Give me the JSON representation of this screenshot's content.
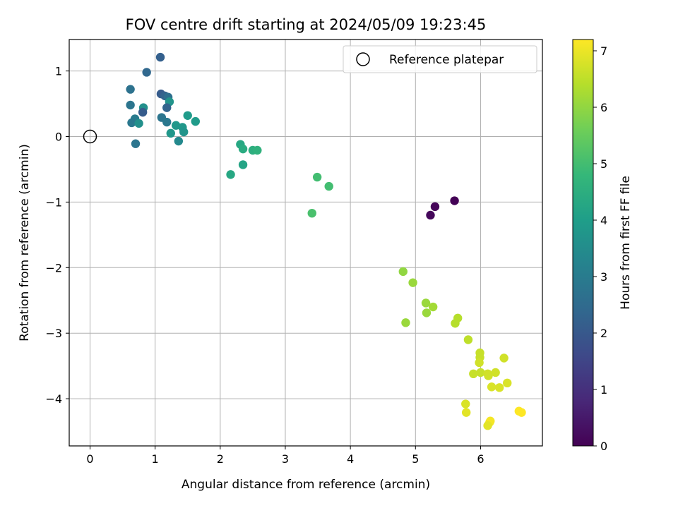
{
  "chart_data": {
    "type": "scatter",
    "title": "FOV centre drift starting at 2024/05/09 19:23:45",
    "xlabel": "Angular distance from reference (arcmin)",
    "ylabel": "Rotation from reference (arcmin)",
    "xlim": [
      -0.32,
      6.95
    ],
    "ylim": [
      -4.72,
      1.48
    ],
    "xticks": [
      0,
      1,
      2,
      3,
      4,
      5,
      6
    ],
    "yticks": [
      1,
      0,
      -1,
      -2,
      -3,
      -4
    ],
    "xtick_labels": [
      "0",
      "1",
      "2",
      "3",
      "4",
      "5",
      "6"
    ],
    "ytick_labels": [
      "1",
      "0",
      "−1",
      "−2",
      "−3",
      "−4"
    ],
    "grid": true,
    "legend": {
      "placement": "top-right",
      "entries": [
        "Reference platepar"
      ]
    },
    "reference_point": {
      "name": "Reference platepar",
      "x": 0,
      "y": 0,
      "marker": "open-circle"
    },
    "colorbar": {
      "label": "Hours from first FF file",
      "range": [
        0,
        7.2
      ],
      "ticks": [
        0,
        1,
        2,
        3,
        4,
        5,
        6,
        7
      ],
      "tick_labels": [
        "0",
        "1",
        "2",
        "3",
        "4",
        "5",
        "6",
        "7"
      ],
      "colormap": "viridis",
      "stops": [
        "#440154",
        "#482878",
        "#3e4989",
        "#31688e",
        "#26828e",
        "#1f9e89",
        "#35b779",
        "#6ece58",
        "#b5de2b",
        "#fde725"
      ]
    },
    "points": [
      {
        "x": 5.6,
        "y": -0.98,
        "hours": 0.05
      },
      {
        "x": 5.3,
        "y": -1.07,
        "hours": 0.1
      },
      {
        "x": 5.23,
        "y": -1.2,
        "hours": 0.15
      },
      {
        "x": 1.08,
        "y": 1.21,
        "hours": 2.2
      },
      {
        "x": 0.87,
        "y": 0.98,
        "hours": 2.4
      },
      {
        "x": 0.62,
        "y": 0.72,
        "hours": 2.7
      },
      {
        "x": 1.09,
        "y": 0.65,
        "hours": 2.1
      },
      {
        "x": 1.15,
        "y": 0.62,
        "hours": 2.3
      },
      {
        "x": 1.2,
        "y": 0.6,
        "hours": 2.6
      },
      {
        "x": 1.22,
        "y": 0.53,
        "hours": 3.7
      },
      {
        "x": 0.62,
        "y": 0.48,
        "hours": 2.8
      },
      {
        "x": 0.82,
        "y": 0.44,
        "hours": 3.6
      },
      {
        "x": 1.18,
        "y": 0.44,
        "hours": 2.3
      },
      {
        "x": 0.81,
        "y": 0.37,
        "hours": 2.1
      },
      {
        "x": 1.5,
        "y": 0.32,
        "hours": 3.9
      },
      {
        "x": 1.1,
        "y": 0.29,
        "hours": 2.8
      },
      {
        "x": 0.69,
        "y": 0.27,
        "hours": 3.0
      },
      {
        "x": 1.62,
        "y": 0.23,
        "hours": 3.9
      },
      {
        "x": 0.64,
        "y": 0.21,
        "hours": 2.9
      },
      {
        "x": 0.75,
        "y": 0.2,
        "hours": 3.6
      },
      {
        "x": 1.18,
        "y": 0.22,
        "hours": 2.9
      },
      {
        "x": 1.32,
        "y": 0.17,
        "hours": 3.8
      },
      {
        "x": 1.42,
        "y": 0.14,
        "hours": 3.8
      },
      {
        "x": 1.44,
        "y": 0.07,
        "hours": 3.7
      },
      {
        "x": 1.24,
        "y": 0.05,
        "hours": 3.8
      },
      {
        "x": 1.36,
        "y": -0.07,
        "hours": 3.4
      },
      {
        "x": 0.7,
        "y": -0.11,
        "hours": 2.8
      },
      {
        "x": 2.31,
        "y": -0.12,
        "hours": 4.3
      },
      {
        "x": 2.35,
        "y": -0.19,
        "hours": 4.4
      },
      {
        "x": 2.5,
        "y": -0.21,
        "hours": 4.5
      },
      {
        "x": 2.57,
        "y": -0.21,
        "hours": 4.6
      },
      {
        "x": 2.35,
        "y": -0.43,
        "hours": 4.2
      },
      {
        "x": 2.16,
        "y": -0.58,
        "hours": 4.3
      },
      {
        "x": 3.49,
        "y": -0.62,
        "hours": 5.0
      },
      {
        "x": 3.67,
        "y": -0.76,
        "hours": 5.0
      },
      {
        "x": 3.41,
        "y": -1.17,
        "hours": 5.1
      },
      {
        "x": 4.81,
        "y": -2.06,
        "hours": 6.0
      },
      {
        "x": 4.96,
        "y": -2.23,
        "hours": 6.1
      },
      {
        "x": 5.16,
        "y": -2.54,
        "hours": 6.1
      },
      {
        "x": 5.27,
        "y": -2.6,
        "hours": 6.2
      },
      {
        "x": 5.17,
        "y": -2.69,
        "hours": 6.1
      },
      {
        "x": 4.85,
        "y": -2.84,
        "hours": 6.1
      },
      {
        "x": 5.65,
        "y": -2.77,
        "hours": 6.4
      },
      {
        "x": 5.61,
        "y": -2.85,
        "hours": 6.4
      },
      {
        "x": 5.81,
        "y": -3.1,
        "hours": 6.5
      },
      {
        "x": 5.99,
        "y": -3.3,
        "hours": 6.6
      },
      {
        "x": 5.99,
        "y": -3.37,
        "hours": 6.6
      },
      {
        "x": 6.36,
        "y": -3.38,
        "hours": 6.7
      },
      {
        "x": 5.98,
        "y": -3.45,
        "hours": 6.7
      },
      {
        "x": 5.89,
        "y": -3.62,
        "hours": 6.6
      },
      {
        "x": 6.0,
        "y": -3.6,
        "hours": 6.6
      },
      {
        "x": 6.11,
        "y": -3.62,
        "hours": 6.7
      },
      {
        "x": 6.12,
        "y": -3.65,
        "hours": 6.7
      },
      {
        "x": 6.23,
        "y": -3.6,
        "hours": 6.7
      },
      {
        "x": 6.41,
        "y": -3.76,
        "hours": 6.8
      },
      {
        "x": 6.17,
        "y": -3.82,
        "hours": 6.8
      },
      {
        "x": 6.29,
        "y": -3.83,
        "hours": 6.8
      },
      {
        "x": 5.77,
        "y": -4.08,
        "hours": 6.8
      },
      {
        "x": 5.78,
        "y": -4.21,
        "hours": 6.9
      },
      {
        "x": 6.15,
        "y": -4.34,
        "hours": 7.1
      },
      {
        "x": 6.14,
        "y": -4.36,
        "hours": 7.1
      },
      {
        "x": 6.11,
        "y": -4.41,
        "hours": 6.9
      },
      {
        "x": 6.59,
        "y": -4.19,
        "hours": 7.2
      },
      {
        "x": 6.63,
        "y": -4.21,
        "hours": 7.2
      }
    ]
  }
}
